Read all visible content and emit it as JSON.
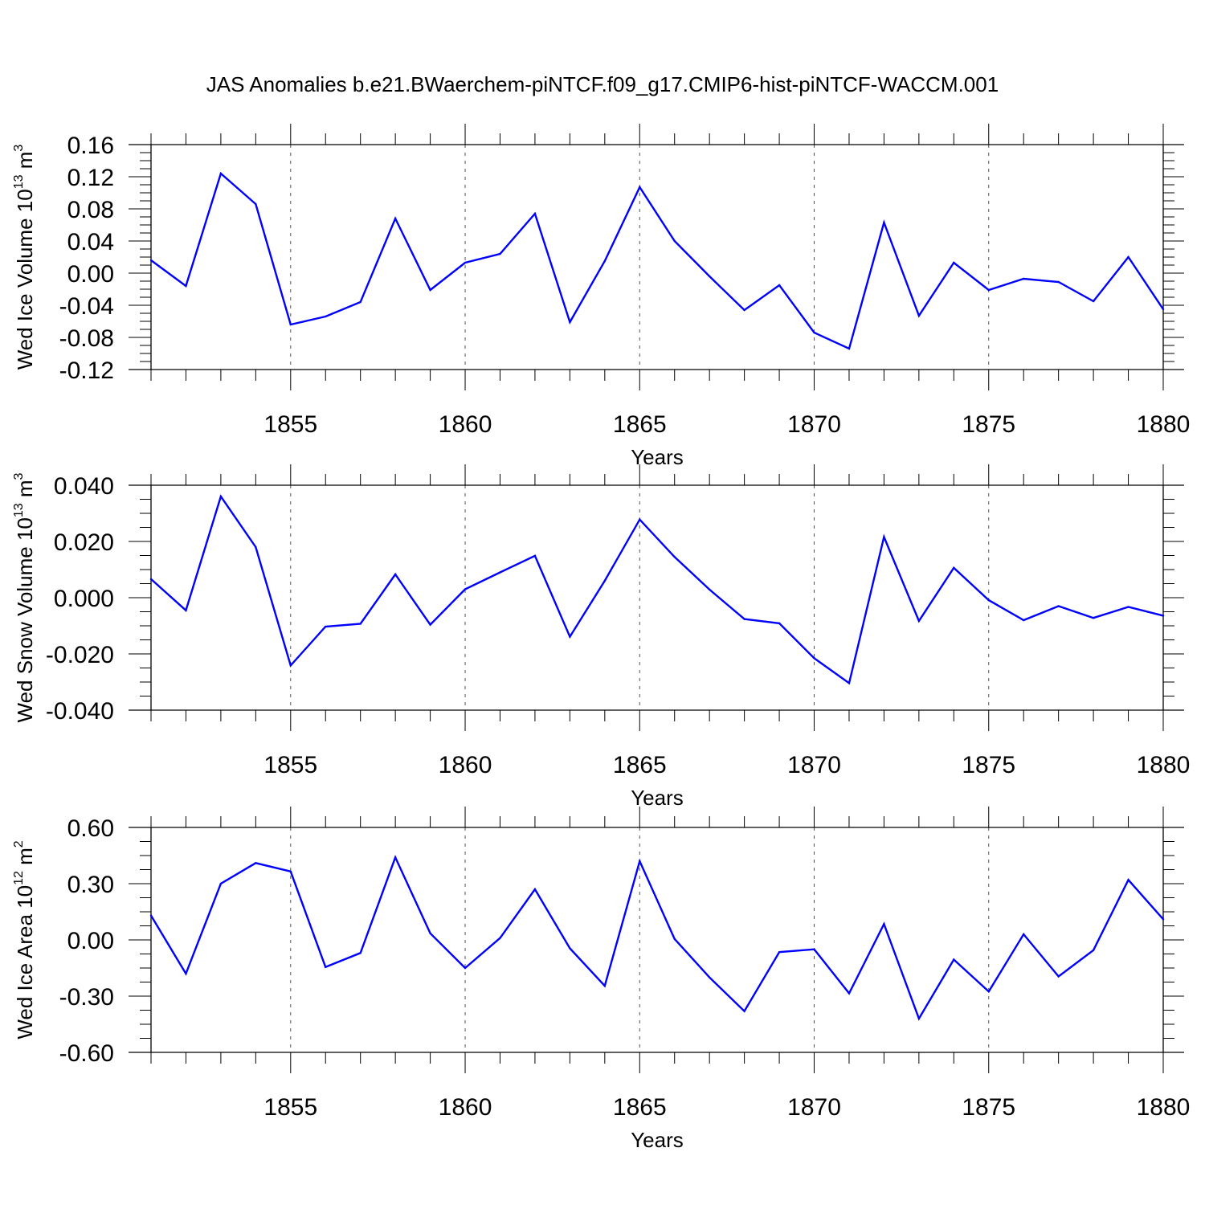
{
  "title": "JAS Anomalies b.e21.BWaerchem-piNTCF.f09_g17.CMIP6-hist-piNTCF-WACCM.001",
  "colors": {
    "line": "#0000ff",
    "axis": "#000000",
    "grid": "#555555"
  },
  "chart_data": [
    {
      "type": "line",
      "id": "ice-volume",
      "title": "",
      "xlabel": "Years",
      "ylabel": {
        "main": "Wed Ice Volume 10",
        "exp": "13",
        "unit": " m",
        "unit_exp": "3"
      },
      "xlim": [
        1851,
        1880
      ],
      "ylim": [
        -0.12,
        0.16
      ],
      "yticks": [
        -0.12,
        -0.08,
        -0.04,
        0.0,
        0.04,
        0.08,
        0.12,
        0.16
      ],
      "ytick_labels": [
        "-0.12",
        "-0.08",
        "-0.04",
        "0.00",
        "0.04",
        "0.08",
        "0.12",
        "0.16"
      ],
      "xticks": [
        1855,
        1860,
        1865,
        1870,
        1875,
        1880
      ],
      "xtick_labels": [
        "1855",
        "1860",
        "1865",
        "1870",
        "1875",
        "1880"
      ],
      "x": [
        1851,
        1852,
        1853,
        1854,
        1855,
        1856,
        1857,
        1858,
        1859,
        1860,
        1861,
        1862,
        1863,
        1864,
        1865,
        1866,
        1867,
        1868,
        1869,
        1870,
        1871,
        1872,
        1873,
        1874,
        1875,
        1876,
        1877,
        1878,
        1879,
        1880
      ],
      "values": [
        0.016,
        -0.016,
        0.124,
        0.086,
        -0.064,
        -0.054,
        -0.036,
        0.068,
        -0.021,
        0.013,
        0.024,
        0.074,
        -0.061,
        0.015,
        0.107,
        0.04,
        -0.004,
        -0.046,
        -0.015,
        -0.074,
        -0.094,
        0.063,
        -0.053,
        0.013,
        -0.021,
        -0.007,
        -0.011,
        -0.035,
        0.02,
        -0.045
      ]
    },
    {
      "type": "line",
      "id": "snow-volume",
      "title": "",
      "xlabel": "Years",
      "ylabel": {
        "main": "Wed Snow Volume 10",
        "exp": "13",
        "unit": " m",
        "unit_exp": "3"
      },
      "xlim": [
        1851,
        1880
      ],
      "ylim": [
        -0.04,
        0.04
      ],
      "yticks": [
        -0.04,
        -0.02,
        0.0,
        0.02,
        0.04
      ],
      "ytick_labels": [
        "-0.040",
        "-0.020",
        "0.000",
        "0.020",
        "0.040"
      ],
      "xticks": [
        1855,
        1860,
        1865,
        1870,
        1875,
        1880
      ],
      "xtick_labels": [
        "1855",
        "1860",
        "1865",
        "1870",
        "1875",
        "1880"
      ],
      "x": [
        1851,
        1852,
        1853,
        1854,
        1855,
        1856,
        1857,
        1858,
        1859,
        1860,
        1861,
        1862,
        1863,
        1864,
        1865,
        1866,
        1867,
        1868,
        1869,
        1870,
        1871,
        1872,
        1873,
        1874,
        1875,
        1876,
        1877,
        1878,
        1879,
        1880
      ],
      "values": [
        0.0066,
        -0.0045,
        0.036,
        0.018,
        -0.0241,
        -0.0103,
        -0.0093,
        0.0083,
        -0.0096,
        0.003,
        0.009,
        0.0149,
        -0.0139,
        0.006,
        0.0278,
        0.0145,
        0.0029,
        -0.0076,
        -0.0091,
        -0.0215,
        -0.0304,
        0.0216,
        -0.0083,
        0.0106,
        -0.0009,
        -0.008,
        -0.003,
        -0.0072,
        -0.0033,
        -0.0064
      ]
    },
    {
      "type": "line",
      "id": "ice-area",
      "title": "",
      "xlabel": "Years",
      "ylabel": {
        "main": "Wed Ice Area 10",
        "exp": "12",
        "unit": " m",
        "unit_exp": "2"
      },
      "xlim": [
        1851,
        1880
      ],
      "ylim": [
        -0.6,
        0.6
      ],
      "yticks": [
        -0.6,
        -0.3,
        0.0,
        0.3,
        0.6
      ],
      "ytick_labels": [
        "-0.60",
        "-0.30",
        "0.00",
        "0.30",
        "0.60"
      ],
      "xticks": [
        1855,
        1860,
        1865,
        1870,
        1875,
        1880
      ],
      "xtick_labels": [
        "1855",
        "1860",
        "1865",
        "1870",
        "1875",
        "1880"
      ],
      "x": [
        1851,
        1852,
        1853,
        1854,
        1855,
        1856,
        1857,
        1858,
        1859,
        1860,
        1861,
        1862,
        1863,
        1864,
        1865,
        1866,
        1867,
        1868,
        1869,
        1870,
        1871,
        1872,
        1873,
        1874,
        1875,
        1876,
        1877,
        1878,
        1879,
        1880
      ],
      "values": [
        0.13,
        -0.18,
        0.3,
        0.41,
        0.365,
        -0.145,
        -0.07,
        0.44,
        0.035,
        -0.15,
        0.01,
        0.27,
        -0.045,
        -0.245,
        0.42,
        0.005,
        -0.2,
        -0.38,
        -0.065,
        -0.05,
        -0.285,
        0.085,
        -0.42,
        -0.105,
        -0.275,
        0.03,
        -0.195,
        -0.055,
        0.32,
        0.11
      ]
    }
  ]
}
